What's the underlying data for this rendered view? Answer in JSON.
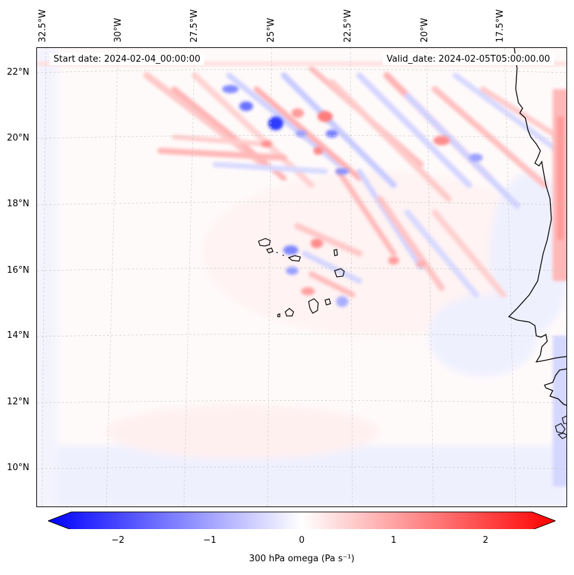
{
  "map": {
    "start_date": "Start date: 2024-02-04_00:00:00",
    "valid_date": "Valid_date: 2024-02-05T05:00:00.00",
    "longitude_labels": [
      "32.5°W",
      "30°W",
      "27.5°W",
      "25°W",
      "22.5°W",
      "20°W",
      "17.5°W"
    ],
    "latitude_labels": [
      "22°N",
      "20°N",
      "18°N",
      "16°N",
      "14°N",
      "12°N",
      "10°N"
    ],
    "features": [
      "Cape Verde islands",
      "West African coastline (Senegal, Gambia, Guinea-Bissau)"
    ]
  },
  "colorbar": {
    "label": "300 hPa omega (Pa s⁻¹)",
    "ticks": [
      "−2",
      "−1",
      "0",
      "1",
      "2"
    ],
    "tick_values": [
      -2,
      -1,
      0,
      1,
      2
    ],
    "range": [
      -2.6,
      2.6
    ],
    "colormap": "bwr",
    "low_color": "#0000ff",
    "mid_color": "#ffffff",
    "high_color": "#ff0000"
  }
}
